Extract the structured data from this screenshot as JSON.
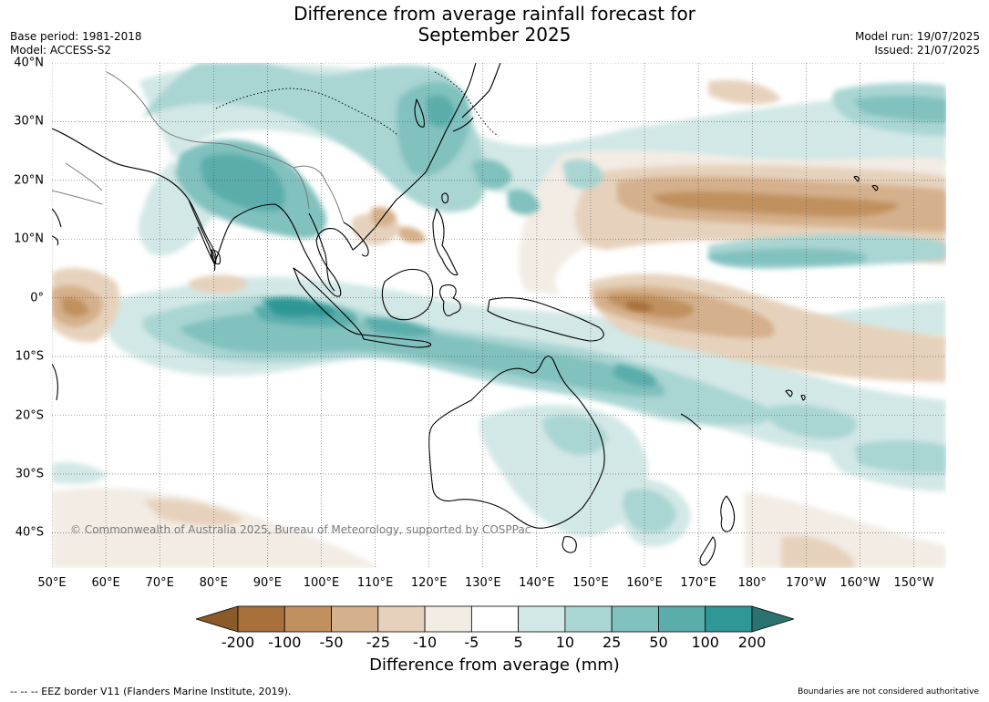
{
  "header": {
    "title_line1": "Difference from average rainfall forecast for",
    "title_line2": "September 2025",
    "base_period": "Base period: 1981-2018",
    "model": "Model: ACCESS-S2",
    "model_run": "Model run: 19/07/2025",
    "issued": "Issued: 21/07/2025"
  },
  "map": {
    "copyright": "© Commonwealth of Australia 2025, Bureau of Meteorology, supported by COSPPac",
    "lon_ticks": [
      "50°E",
      "60°E",
      "70°E",
      "80°E",
      "90°E",
      "100°E",
      "110°E",
      "120°E",
      "130°E",
      "140°E",
      "150°E",
      "160°E",
      "170°E",
      "180°",
      "170°W",
      "160°W",
      "150°W"
    ],
    "lat_ticks": [
      "40°N",
      "30°N",
      "20°N",
      "10°N",
      "0°",
      "10°S",
      "20°S",
      "30°S",
      "40°S"
    ],
    "lat_values": [
      40,
      30,
      20,
      10,
      0,
      -10,
      -20,
      -30,
      -40
    ],
    "extent": {
      "lon_min": 50,
      "lon_max": 216,
      "lat_min": -46,
      "lat_max": 40
    }
  },
  "colorbar": {
    "title": "Difference from average (mm)",
    "ticks": [
      "-200",
      "-100",
      "-50",
      "-25",
      "-10",
      "-5",
      "5",
      "10",
      "25",
      "50",
      "100",
      "200"
    ],
    "colors": [
      "#8a5a2b",
      "#a8703a",
      "#c0915f",
      "#d5b08c",
      "#e6d2bc",
      "#f2ece4",
      "#ffffff",
      "#d2e8e6",
      "#a9d5d3",
      "#81c1be",
      "#5aadab",
      "#2f9795",
      "#2b7370"
    ]
  },
  "footer": {
    "eez_note": "--  --  -- EEZ border V11 (Flanders Marine Institute, 2019).",
    "boundaries_note": "Boundaries are not considered authoritative"
  }
}
